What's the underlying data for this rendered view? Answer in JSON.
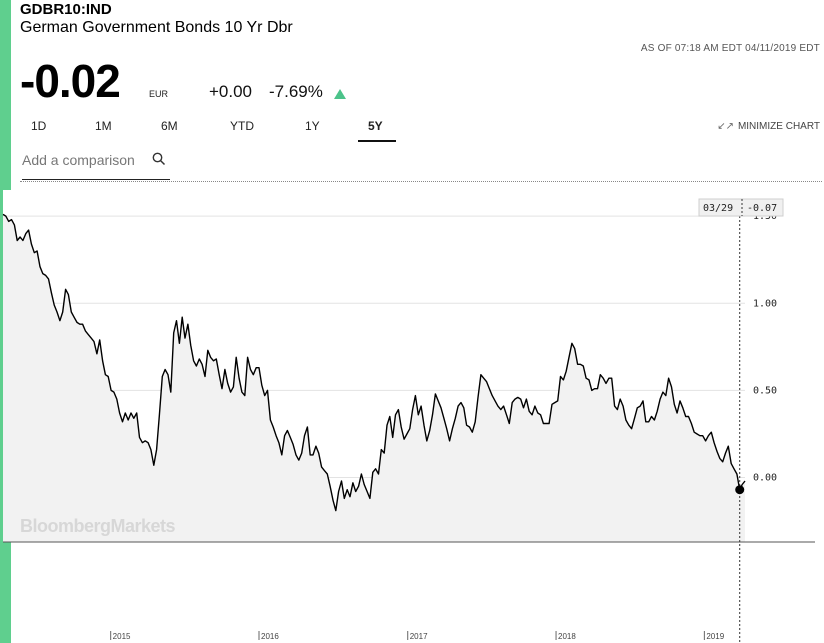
{
  "header": {
    "ticker": "GDBR10:IND",
    "name": "German Government Bonds 10 Yr Dbr",
    "as_of": "AS OF 07:18 AM EDT 04/11/2019 EDT",
    "price": "-0.02",
    "currency": "EUR",
    "change": "+0.00",
    "change_pct": "-7.69%",
    "accent_color": "#5fcf8e",
    "up_color": "#4cc38a"
  },
  "tabs": [
    {
      "label": "1D",
      "active": false
    },
    {
      "label": "1M",
      "active": false
    },
    {
      "label": "6M",
      "active": false
    },
    {
      "label": "YTD",
      "active": false
    },
    {
      "label": "1Y",
      "active": false
    },
    {
      "label": "5Y",
      "active": true
    }
  ],
  "controls": {
    "minimize_label": "MINIMIZE CHART",
    "minimize_icon": "collapse-arrows-icon",
    "compare_placeholder": "Add a comparison",
    "search_icon": "search-icon"
  },
  "chart_data": {
    "type": "area",
    "watermark": "BloombergMarkets",
    "y_ticks": [
      "1.50",
      "1.00",
      "0.50",
      "0.00"
    ],
    "y_tick_values": [
      1.5,
      1.0,
      0.5,
      0.0
    ],
    "ylim": [
      -0.37,
      1.65
    ],
    "x_ticks": [
      "2015",
      "2016",
      "2017",
      "2018",
      "2019"
    ],
    "x_tick_dates": [
      "2015-01-01",
      "2016-01-01",
      "2017-01-01",
      "2018-01-01",
      "2019-01-01"
    ],
    "x_range": [
      "2014-04-11",
      "2019-04-11"
    ],
    "grid": true,
    "crosshair": {
      "date": "03/29",
      "value": "-0.07"
    },
    "line_color": "#000000",
    "fill_color": "#f2f2f2",
    "series": [
      {
        "values": [
          [
            "2014-04-11",
            1.51
          ],
          [
            "2014-04-18",
            1.5
          ],
          [
            "2014-04-25",
            1.47
          ],
          [
            "2014-05-02",
            1.48
          ],
          [
            "2014-05-09",
            1.45
          ],
          [
            "2014-05-16",
            1.36
          ],
          [
            "2014-05-23",
            1.38
          ],
          [
            "2014-05-30",
            1.36
          ],
          [
            "2014-06-06",
            1.4
          ],
          [
            "2014-06-13",
            1.42
          ],
          [
            "2014-06-20",
            1.34
          ],
          [
            "2014-06-27",
            1.29
          ],
          [
            "2014-07-04",
            1.3
          ],
          [
            "2014-07-11",
            1.21
          ],
          [
            "2014-07-18",
            1.17
          ],
          [
            "2014-07-25",
            1.16
          ],
          [
            "2014-08-01",
            1.14
          ],
          [
            "2014-08-08",
            1.06
          ],
          [
            "2014-08-15",
            0.99
          ],
          [
            "2014-08-22",
            0.95
          ],
          [
            "2014-08-29",
            0.9
          ],
          [
            "2014-09-05",
            0.95
          ],
          [
            "2014-09-12",
            1.08
          ],
          [
            "2014-09-19",
            1.05
          ],
          [
            "2014-09-26",
            0.95
          ],
          [
            "2014-10-03",
            0.92
          ],
          [
            "2014-10-10",
            0.89
          ],
          [
            "2014-10-17",
            0.88
          ],
          [
            "2014-10-24",
            0.88
          ],
          [
            "2014-10-31",
            0.84
          ],
          [
            "2014-11-07",
            0.82
          ],
          [
            "2014-11-14",
            0.8
          ],
          [
            "2014-11-21",
            0.78
          ],
          [
            "2014-11-28",
            0.71
          ],
          [
            "2014-12-05",
            0.79
          ],
          [
            "2014-12-12",
            0.67
          ],
          [
            "2014-12-19",
            0.59
          ],
          [
            "2014-12-26",
            0.58
          ],
          [
            "2015-01-02",
            0.5
          ],
          [
            "2015-01-09",
            0.49
          ],
          [
            "2015-01-16",
            0.45
          ],
          [
            "2015-01-23",
            0.37
          ],
          [
            "2015-01-30",
            0.32
          ],
          [
            "2015-02-06",
            0.37
          ],
          [
            "2015-02-13",
            0.33
          ],
          [
            "2015-02-20",
            0.37
          ],
          [
            "2015-02-27",
            0.34
          ],
          [
            "2015-03-06",
            0.37
          ],
          [
            "2015-03-13",
            0.23
          ],
          [
            "2015-03-20",
            0.2
          ],
          [
            "2015-03-27",
            0.21
          ],
          [
            "2015-04-03",
            0.2
          ],
          [
            "2015-04-10",
            0.16
          ],
          [
            "2015-04-17",
            0.07
          ],
          [
            "2015-04-24",
            0.16
          ],
          [
            "2015-05-01",
            0.36
          ],
          [
            "2015-05-08",
            0.58
          ],
          [
            "2015-05-15",
            0.62
          ],
          [
            "2015-05-22",
            0.59
          ],
          [
            "2015-05-29",
            0.49
          ],
          [
            "2015-06-05",
            0.83
          ],
          [
            "2015-06-12",
            0.9
          ],
          [
            "2015-06-19",
            0.77
          ],
          [
            "2015-06-26",
            0.92
          ],
          [
            "2015-07-03",
            0.8
          ],
          [
            "2015-07-10",
            0.88
          ],
          [
            "2015-07-17",
            0.76
          ],
          [
            "2015-07-24",
            0.67
          ],
          [
            "2015-07-31",
            0.64
          ],
          [
            "2015-08-07",
            0.68
          ],
          [
            "2015-08-14",
            0.65
          ],
          [
            "2015-08-21",
            0.58
          ],
          [
            "2015-08-28",
            0.73
          ],
          [
            "2015-09-04",
            0.69
          ],
          [
            "2015-09-11",
            0.67
          ],
          [
            "2015-09-18",
            0.68
          ],
          [
            "2015-09-25",
            0.59
          ],
          [
            "2015-10-02",
            0.51
          ],
          [
            "2015-10-09",
            0.62
          ],
          [
            "2015-10-16",
            0.54
          ],
          [
            "2015-10-23",
            0.49
          ],
          [
            "2015-10-30",
            0.52
          ],
          [
            "2015-11-06",
            0.69
          ],
          [
            "2015-11-13",
            0.57
          ],
          [
            "2015-11-20",
            0.49
          ],
          [
            "2015-11-27",
            0.47
          ],
          [
            "2015-12-04",
            0.69
          ],
          [
            "2015-12-11",
            0.62
          ],
          [
            "2015-12-18",
            0.59
          ],
          [
            "2015-12-25",
            0.63
          ],
          [
            "2016-01-01",
            0.63
          ],
          [
            "2016-01-08",
            0.53
          ],
          [
            "2016-01-15",
            0.47
          ],
          [
            "2016-01-22",
            0.5
          ],
          [
            "2016-01-29",
            0.33
          ],
          [
            "2016-02-05",
            0.29
          ],
          [
            "2016-02-12",
            0.24
          ],
          [
            "2016-02-19",
            0.2
          ],
          [
            "2016-02-26",
            0.13
          ],
          [
            "2016-03-04",
            0.24
          ],
          [
            "2016-03-11",
            0.27
          ],
          [
            "2016-03-18",
            0.23
          ],
          [
            "2016-03-25",
            0.19
          ],
          [
            "2016-04-01",
            0.13
          ],
          [
            "2016-04-08",
            0.1
          ],
          [
            "2016-04-15",
            0.14
          ],
          [
            "2016-04-22",
            0.24
          ],
          [
            "2016-04-29",
            0.29
          ],
          [
            "2016-05-06",
            0.13
          ],
          [
            "2016-05-13",
            0.13
          ],
          [
            "2016-05-20",
            0.18
          ],
          [
            "2016-05-27",
            0.14
          ],
          [
            "2016-06-03",
            0.06
          ],
          [
            "2016-06-10",
            0.04
          ],
          [
            "2016-06-17",
            0.02
          ],
          [
            "2016-06-24",
            -0.05
          ],
          [
            "2016-07-01",
            -0.13
          ],
          [
            "2016-07-08",
            -0.19
          ],
          [
            "2016-07-15",
            -0.08
          ],
          [
            "2016-07-22",
            -0.02
          ],
          [
            "2016-07-29",
            -0.12
          ],
          [
            "2016-08-05",
            -0.07
          ],
          [
            "2016-08-12",
            -0.11
          ],
          [
            "2016-08-19",
            -0.03
          ],
          [
            "2016-08-26",
            -0.08
          ],
          [
            "2016-09-02",
            -0.05
          ],
          [
            "2016-09-09",
            0.02
          ],
          [
            "2016-09-16",
            -0.04
          ],
          [
            "2016-09-23",
            -0.08
          ],
          [
            "2016-09-30",
            -0.12
          ],
          [
            "2016-10-07",
            0.03
          ],
          [
            "2016-10-14",
            0.05
          ],
          [
            "2016-10-21",
            0.02
          ],
          [
            "2016-10-28",
            0.16
          ],
          [
            "2016-11-04",
            0.14
          ],
          [
            "2016-11-11",
            0.3
          ],
          [
            "2016-11-18",
            0.35
          ],
          [
            "2016-11-25",
            0.23
          ],
          [
            "2016-12-02",
            0.36
          ],
          [
            "2016-12-09",
            0.39
          ],
          [
            "2016-12-16",
            0.29
          ],
          [
            "2016-12-23",
            0.22
          ],
          [
            "2016-12-30",
            0.25
          ],
          [
            "2017-01-06",
            0.28
          ],
          [
            "2017-01-13",
            0.39
          ],
          [
            "2017-01-20",
            0.47
          ],
          [
            "2017-01-27",
            0.36
          ],
          [
            "2017-02-03",
            0.41
          ],
          [
            "2017-02-10",
            0.3
          ],
          [
            "2017-02-17",
            0.21
          ],
          [
            "2017-02-24",
            0.27
          ],
          [
            "2017-03-03",
            0.36
          ],
          [
            "2017-03-10",
            0.48
          ],
          [
            "2017-03-17",
            0.44
          ],
          [
            "2017-03-24",
            0.4
          ],
          [
            "2017-03-31",
            0.34
          ],
          [
            "2017-04-07",
            0.28
          ],
          [
            "2017-04-14",
            0.21
          ],
          [
            "2017-04-21",
            0.28
          ],
          [
            "2017-04-28",
            0.34
          ],
          [
            "2017-05-05",
            0.41
          ],
          [
            "2017-05-12",
            0.43
          ],
          [
            "2017-05-19",
            0.4
          ],
          [
            "2017-05-26",
            0.3
          ],
          [
            "2017-06-02",
            0.29
          ],
          [
            "2017-06-09",
            0.26
          ],
          [
            "2017-06-16",
            0.32
          ],
          [
            "2017-06-23",
            0.46
          ],
          [
            "2017-06-30",
            0.59
          ],
          [
            "2017-07-07",
            0.57
          ],
          [
            "2017-07-14",
            0.55
          ],
          [
            "2017-07-21",
            0.51
          ],
          [
            "2017-07-28",
            0.47
          ],
          [
            "2017-08-04",
            0.44
          ],
          [
            "2017-08-11",
            0.41
          ],
          [
            "2017-08-18",
            0.39
          ],
          [
            "2017-08-25",
            0.41
          ],
          [
            "2017-09-01",
            0.36
          ],
          [
            "2017-09-08",
            0.31
          ],
          [
            "2017-09-15",
            0.43
          ],
          [
            "2017-09-22",
            0.45
          ],
          [
            "2017-09-29",
            0.46
          ],
          [
            "2017-10-06",
            0.45
          ],
          [
            "2017-10-13",
            0.4
          ],
          [
            "2017-10-20",
            0.45
          ],
          [
            "2017-10-27",
            0.38
          ],
          [
            "2017-11-03",
            0.36
          ],
          [
            "2017-11-10",
            0.41
          ],
          [
            "2017-11-17",
            0.37
          ],
          [
            "2017-11-24",
            0.36
          ],
          [
            "2017-12-01",
            0.31
          ],
          [
            "2017-12-08",
            0.31
          ],
          [
            "2017-12-15",
            0.31
          ],
          [
            "2017-12-22",
            0.42
          ],
          [
            "2017-12-29",
            0.43
          ],
          [
            "2018-01-05",
            0.44
          ],
          [
            "2018-01-12",
            0.58
          ],
          [
            "2018-01-19",
            0.56
          ],
          [
            "2018-01-26",
            0.61
          ],
          [
            "2018-02-02",
            0.69
          ],
          [
            "2018-02-09",
            0.77
          ],
          [
            "2018-02-16",
            0.74
          ],
          [
            "2018-02-23",
            0.65
          ],
          [
            "2018-03-02",
            0.65
          ],
          [
            "2018-03-09",
            0.64
          ],
          [
            "2018-03-16",
            0.57
          ],
          [
            "2018-03-23",
            0.56
          ],
          [
            "2018-03-30",
            0.5
          ],
          [
            "2018-04-06",
            0.51
          ],
          [
            "2018-04-13",
            0.51
          ],
          [
            "2018-04-20",
            0.59
          ],
          [
            "2018-04-27",
            0.57
          ],
          [
            "2018-05-04",
            0.54
          ],
          [
            "2018-05-11",
            0.57
          ],
          [
            "2018-05-18",
            0.57
          ],
          [
            "2018-05-25",
            0.41
          ],
          [
            "2018-06-01",
            0.39
          ],
          [
            "2018-06-08",
            0.45
          ],
          [
            "2018-06-15",
            0.41
          ],
          [
            "2018-06-22",
            0.33
          ],
          [
            "2018-06-29",
            0.3
          ],
          [
            "2018-07-06",
            0.28
          ],
          [
            "2018-07-13",
            0.34
          ],
          [
            "2018-07-20",
            0.4
          ],
          [
            "2018-07-27",
            0.41
          ],
          [
            "2018-08-03",
            0.44
          ],
          [
            "2018-08-10",
            0.32
          ],
          [
            "2018-08-17",
            0.32
          ],
          [
            "2018-08-24",
            0.35
          ],
          [
            "2018-08-31",
            0.33
          ],
          [
            "2018-09-07",
            0.38
          ],
          [
            "2018-09-14",
            0.45
          ],
          [
            "2018-09-21",
            0.49
          ],
          [
            "2018-09-28",
            0.47
          ],
          [
            "2018-10-05",
            0.57
          ],
          [
            "2018-10-12",
            0.52
          ],
          [
            "2018-10-19",
            0.42
          ],
          [
            "2018-10-26",
            0.37
          ],
          [
            "2018-11-02",
            0.44
          ],
          [
            "2018-11-09",
            0.4
          ],
          [
            "2018-11-16",
            0.35
          ],
          [
            "2018-11-23",
            0.35
          ],
          [
            "2018-11-30",
            0.31
          ],
          [
            "2018-12-07",
            0.26
          ],
          [
            "2018-12-14",
            0.25
          ],
          [
            "2018-12-21",
            0.24
          ],
          [
            "2018-12-28",
            0.24
          ],
          [
            "2019-01-04",
            0.21
          ],
          [
            "2019-01-11",
            0.24
          ],
          [
            "2019-01-18",
            0.26
          ],
          [
            "2019-01-25",
            0.2
          ],
          [
            "2019-02-01",
            0.15
          ],
          [
            "2019-02-08",
            0.11
          ],
          [
            "2019-02-15",
            0.09
          ],
          [
            "2019-02-22",
            0.14
          ],
          [
            "2019-03-01",
            0.18
          ],
          [
            "2019-03-08",
            0.08
          ],
          [
            "2019-03-15",
            0.05
          ],
          [
            "2019-03-22",
            0.02
          ],
          [
            "2019-03-29",
            -0.07
          ],
          [
            "2019-04-04",
            -0.04
          ],
          [
            "2019-04-11",
            -0.02
          ]
        ]
      }
    ]
  }
}
